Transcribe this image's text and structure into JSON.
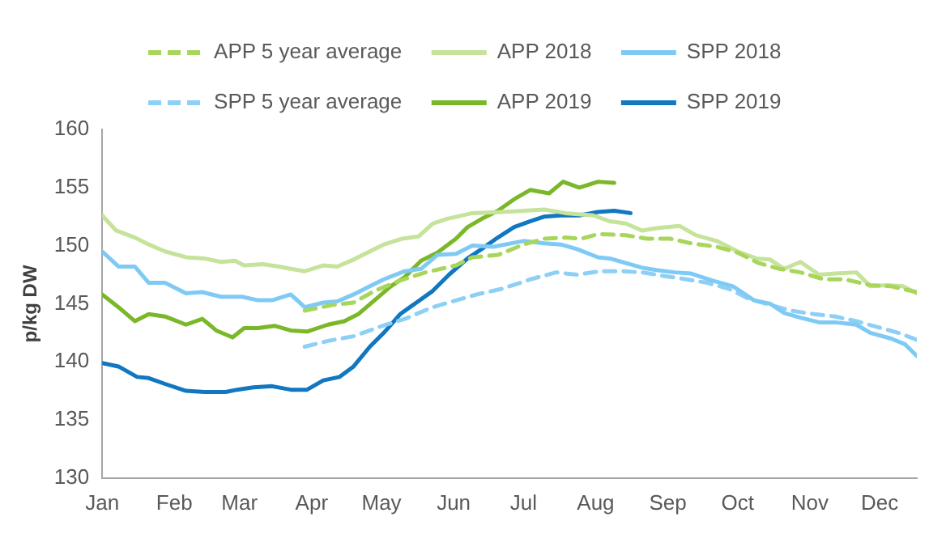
{
  "chart_data": {
    "type": "line",
    "ylabel": "p/kg DW",
    "xlim": [
      "--01-01",
      "--12-17"
    ],
    "xticks": [
      {
        "value": "--01-01",
        "label": "Jan"
      },
      {
        "value": "--02-01",
        "label": "Feb"
      },
      {
        "value": "--03-01",
        "label": "Mar"
      },
      {
        "value": "--04-01",
        "label": "Apr"
      },
      {
        "value": "--05-01",
        "label": "May"
      },
      {
        "value": "--06-01",
        "label": "Jun"
      },
      {
        "value": "--07-01",
        "label": "Jul"
      },
      {
        "value": "--08-01",
        "label": "Aug"
      },
      {
        "value": "--09-01",
        "label": "Sep"
      },
      {
        "value": "--10-01",
        "label": "Oct"
      },
      {
        "value": "--11-01",
        "label": "Nov"
      },
      {
        "value": "--12-01",
        "label": "Dec"
      }
    ],
    "ylim": [
      130,
      160
    ],
    "yticks": [
      130,
      135,
      140,
      145,
      150,
      155,
      160
    ],
    "grid": false,
    "legend": "top",
    "marker": "none",
    "series": [
      {
        "name": "APP 5 year average",
        "color": "#a8d65a",
        "line_style": "dashed",
        "x": [
          "--03-29",
          "--04-10",
          "--04-19",
          "--04-28",
          "--05-09",
          "--05-20",
          "--06-02",
          "--06-09",
          "--06-20",
          "--07-01",
          "--07-10",
          "--07-19",
          "--07-26",
          "--08-02",
          "--08-14",
          "--08-23",
          "--09-02",
          "--09-11",
          "--09-22",
          "--10-01",
          "--10-10",
          "--10-19",
          "--10-28",
          "--11-07",
          "--11-16",
          "--11-27",
          "--12-06",
          "--12-17"
        ],
        "values": [
          144.4,
          144.9,
          145.1,
          146.1,
          147.0,
          147.7,
          148.3,
          149.0,
          149.2,
          150.1,
          150.6,
          150.7,
          150.6,
          151.0,
          150.9,
          150.6,
          150.6,
          150.2,
          149.9,
          149.4,
          148.5,
          148.0,
          147.7,
          147.1,
          147.1,
          146.6,
          146.5,
          146.0
        ]
      },
      {
        "name": "APP 2018",
        "color": "#c5e39a",
        "line_style": "solid",
        "x": [
          "--01-01",
          "--01-07",
          "--01-15",
          "--01-21",
          "--01-28",
          "--02-06",
          "--02-14",
          "--02-21",
          "--02-27",
          "--03-03",
          "--03-11",
          "--03-18",
          "--03-23",
          "--03-29",
          "--04-06",
          "--04-12",
          "--04-19",
          "--04-26",
          "--05-02",
          "--05-10",
          "--05-17",
          "--05-23",
          "--05-29",
          "--06-09",
          "--06-22",
          "--07-01",
          "--07-10",
          "--07-19",
          "--07-31",
          "--08-07",
          "--08-14",
          "--08-21",
          "--08-27",
          "--09-06",
          "--09-13",
          "--09-22",
          "--10-01",
          "--10-09",
          "--10-15",
          "--10-21",
          "--10-28",
          "--11-05",
          "--11-12",
          "--11-21",
          "--11-27",
          "--12-04",
          "--12-11",
          "--12-17"
        ],
        "values": [
          152.6,
          151.3,
          150.7,
          150.1,
          149.5,
          149.0,
          148.9,
          148.6,
          148.7,
          148.3,
          148.4,
          148.2,
          148.0,
          147.8,
          148.3,
          148.2,
          148.8,
          149.5,
          150.1,
          150.6,
          150.8,
          151.9,
          152.3,
          152.8,
          152.9,
          153.0,
          153.1,
          152.8,
          152.6,
          152.1,
          151.9,
          151.3,
          151.5,
          151.7,
          150.9,
          150.4,
          149.5,
          148.9,
          148.8,
          148.0,
          148.6,
          147.5,
          147.6,
          147.7,
          146.5,
          146.6,
          146.5,
          145.9
        ]
      },
      {
        "name": "SPP 2018",
        "color": "#7fcaf5",
        "line_style": "solid",
        "x": [
          "--01-01",
          "--01-08",
          "--01-15",
          "--01-21",
          "--01-28",
          "--02-06",
          "--02-13",
          "--02-21",
          "--03-02",
          "--03-09",
          "--03-15",
          "--03-23",
          "--03-29",
          "--04-06",
          "--04-12",
          "--04-19",
          "--04-26",
          "--05-02",
          "--05-11",
          "--05-18",
          "--05-25",
          "--06-02",
          "--06-09",
          "--06-18",
          "--07-01",
          "--07-10",
          "--07-17",
          "--07-24",
          "--08-02",
          "--08-07",
          "--08-14",
          "--08-21",
          "--08-27",
          "--09-04",
          "--09-11",
          "--09-20",
          "--09-29",
          "--10-08",
          "--10-15",
          "--10-21",
          "--10-28",
          "--11-05",
          "--11-12",
          "--11-21",
          "--11-27",
          "--12-06",
          "--12-12",
          "--12-17"
        ],
        "values": [
          149.5,
          148.2,
          148.2,
          146.8,
          146.8,
          145.9,
          146.0,
          145.6,
          145.6,
          145.3,
          145.3,
          145.8,
          144.7,
          145.1,
          145.2,
          145.8,
          146.5,
          147.1,
          147.8,
          148.0,
          149.2,
          149.3,
          150.0,
          149.9,
          150.4,
          150.2,
          150.1,
          149.7,
          149.0,
          148.9,
          148.5,
          148.1,
          147.9,
          147.7,
          147.6,
          147.0,
          146.5,
          145.3,
          145.0,
          144.2,
          143.8,
          143.4,
          143.4,
          143.2,
          142.5,
          142.0,
          141.5,
          140.5
        ]
      },
      {
        "name": "SPP 5 year average",
        "color": "#8ed0f5",
        "line_style": "dashed",
        "x": [
          "--03-29",
          "--04-08",
          "--04-19",
          "--04-30",
          "--05-11",
          "--05-23",
          "--06-04",
          "--06-11",
          "--06-22",
          "--07-04",
          "--07-15",
          "--07-24",
          "--08-03",
          "--08-12",
          "--08-21",
          "--08-30",
          "--09-09",
          "--09-18",
          "--09-27",
          "--10-06",
          "--10-15",
          "--10-24",
          "--11-03",
          "--11-12",
          "--11-21",
          "--11-30",
          "--12-09",
          "--12-17"
        ],
        "values": [
          141.3,
          141.8,
          142.2,
          143.0,
          143.7,
          144.7,
          145.4,
          145.8,
          146.3,
          147.1,
          147.7,
          147.5,
          147.8,
          147.8,
          147.7,
          147.4,
          147.1,
          146.8,
          146.3,
          145.4,
          144.9,
          144.4,
          144.1,
          143.9,
          143.5,
          143.0,
          142.5,
          141.9
        ]
      },
      {
        "name": "APP 2019",
        "color": "#7ab829",
        "line_style": "solid",
        "x": [
          "--01-01",
          "--01-08",
          "--01-15",
          "--01-21",
          "--01-28",
          "--02-06",
          "--02-13",
          "--02-19",
          "--02-26",
          "--03-03",
          "--03-09",
          "--03-16",
          "--03-23",
          "--03-30",
          "--04-08",
          "--04-15",
          "--04-21",
          "--04-28",
          "--05-05",
          "--05-11",
          "--05-18",
          "--05-25",
          "--06-02",
          "--06-07",
          "--06-13",
          "--06-20",
          "--06-27",
          "--07-04",
          "--07-12",
          "--07-18",
          "--07-25",
          "--08-02",
          "--08-09"
        ],
        "values": [
          145.8,
          144.7,
          143.5,
          144.1,
          143.9,
          143.2,
          143.7,
          142.7,
          142.1,
          142.9,
          142.9,
          143.1,
          142.7,
          142.6,
          143.2,
          143.5,
          144.1,
          145.3,
          146.5,
          147.3,
          148.7,
          149.4,
          150.6,
          151.6,
          152.3,
          153.0,
          154.0,
          154.8,
          154.5,
          155.5,
          155.0,
          155.5,
          155.4
        ]
      },
      {
        "name": "SPP 2019",
        "color": "#1077c0",
        "line_style": "solid",
        "x": [
          "--01-01",
          "--01-08",
          "--01-16",
          "--01-21",
          "--01-28",
          "--02-06",
          "--02-14",
          "--02-23",
          "--02-28",
          "--03-07",
          "--03-15",
          "--03-23",
          "--03-30",
          "--04-06",
          "--04-13",
          "--04-19",
          "--04-26",
          "--05-02",
          "--05-09",
          "--05-16",
          "--05-23",
          "--05-30",
          "--06-07",
          "--06-13",
          "--06-20",
          "--06-27",
          "--07-04",
          "--07-10",
          "--07-17",
          "--07-25",
          "--08-02",
          "--08-09",
          "--08-16"
        ],
        "values": [
          139.9,
          139.6,
          138.7,
          138.6,
          138.1,
          137.5,
          137.4,
          137.4,
          137.6,
          137.8,
          137.9,
          137.6,
          137.6,
          138.4,
          138.7,
          139.6,
          141.3,
          142.5,
          144.1,
          145.1,
          146.1,
          147.5,
          148.9,
          149.7,
          150.7,
          151.6,
          152.1,
          152.5,
          152.6,
          152.6,
          152.9,
          153.0,
          152.8
        ]
      }
    ]
  }
}
